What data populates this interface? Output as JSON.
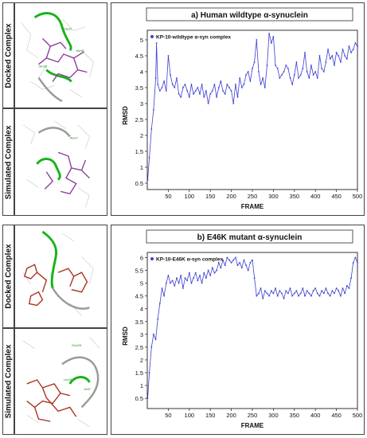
{
  "labels": {
    "docked": "Docked Complex",
    "simulated": "Simulated Complex"
  },
  "molecule_labels_top": [
    "Gly31",
    "Ala30",
    "Gln38",
    "Ala27"
  ],
  "molecule_labels_bottom": [
    "Glu126",
    "Leu31",
    "Ile37"
  ],
  "colors": {
    "line": "#3a3fd0",
    "ligand_top": "#8a3d9a",
    "ligand_bottom": "#a8321e",
    "protein_ribbon": "#17b31a",
    "ribbon_gray": "#9a9a9a"
  },
  "chart_data": [
    {
      "type": "line",
      "title": "a) Human wildtype α-synuclein",
      "xlabel": "FRAME",
      "ylabel": "RMSD",
      "xlim": [
        0,
        500
      ],
      "ylim": [
        0.3,
        5.3
      ],
      "xticks": [
        50,
        100,
        150,
        200,
        250,
        300,
        350,
        400,
        450,
        500
      ],
      "yticks": [
        0.5,
        1,
        1.5,
        2,
        2.5,
        3,
        3.5,
        4,
        4.5,
        5
      ],
      "legend": "top-left",
      "series": [
        {
          "name": "KP-10-wildtype α-syn complex",
          "x": [
            1,
            5,
            10,
            15,
            20,
            22,
            25,
            30,
            35,
            40,
            45,
            50,
            55,
            60,
            65,
            70,
            75,
            80,
            85,
            90,
            95,
            100,
            105,
            110,
            115,
            120,
            125,
            130,
            135,
            140,
            145,
            150,
            155,
            160,
            165,
            170,
            175,
            180,
            185,
            190,
            195,
            200,
            205,
            210,
            215,
            220,
            225,
            230,
            235,
            240,
            245,
            250,
            255,
            260,
            265,
            270,
            275,
            280,
            285,
            290,
            295,
            300,
            305,
            310,
            315,
            320,
            325,
            330,
            335,
            340,
            345,
            350,
            355,
            360,
            365,
            370,
            375,
            380,
            385,
            390,
            395,
            400,
            405,
            410,
            415,
            420,
            425,
            430,
            435,
            440,
            445,
            450,
            455,
            460,
            465,
            470,
            475,
            480,
            485,
            490,
            495,
            500
          ],
          "y": [
            0.6,
            1.3,
            2.2,
            2.8,
            3.8,
            4.9,
            3.6,
            3.4,
            3.5,
            3.7,
            3.4,
            4.5,
            3.9,
            3.6,
            3.5,
            3.8,
            3.3,
            3.2,
            3.5,
            3.6,
            3.4,
            3.2,
            3.6,
            3.3,
            3.4,
            3.5,
            3.3,
            3.6,
            3.2,
            3.4,
            3.0,
            3.3,
            3.4,
            3.6,
            3.2,
            3.5,
            3.7,
            3.4,
            3.3,
            3.6,
            3.5,
            3.4,
            3.0,
            3.6,
            3.2,
            3.8,
            3.5,
            3.6,
            3.9,
            4.0,
            3.7,
            4.1,
            4.3,
            5.0,
            4.0,
            3.6,
            3.8,
            3.5,
            4.2,
            5.2,
            4.9,
            5.1,
            4.2,
            4.1,
            3.8,
            3.9,
            4.0,
            4.2,
            4.1,
            3.8,
            3.6,
            3.9,
            4.3,
            3.8,
            3.9,
            4.1,
            4.6,
            4.0,
            3.8,
            4.2,
            3.9,
            4.0,
            3.8,
            4.5,
            4.1,
            4.0,
            4.3,
            4.7,
            4.4,
            4.5,
            4.2,
            4.6,
            4.5,
            4.3,
            4.7,
            4.5,
            4.4,
            4.8,
            4.6,
            4.7,
            4.9,
            4.8
          ]
        }
      ]
    },
    {
      "type": "line",
      "title": "b) E46K mutant α-synuclein",
      "xlabel": "FRAME",
      "ylabel": "RMSD",
      "xlim": [
        0,
        500
      ],
      "ylim": [
        0.1,
        6.2
      ],
      "xticks": [
        50,
        100,
        150,
        200,
        250,
        300,
        350,
        400,
        450,
        500
      ],
      "yticks": [
        0.5,
        1,
        1.5,
        2,
        2.5,
        3,
        3.5,
        4,
        4.5,
        5,
        5.5,
        6
      ],
      "legend": "top-left",
      "series": [
        {
          "name": "KP-10-E46K α-syn complex",
          "x": [
            1,
            5,
            10,
            15,
            20,
            25,
            30,
            35,
            40,
            45,
            50,
            55,
            60,
            65,
            70,
            75,
            80,
            85,
            90,
            95,
            100,
            105,
            110,
            115,
            120,
            125,
            130,
            135,
            140,
            145,
            150,
            155,
            160,
            165,
            170,
            175,
            180,
            185,
            190,
            195,
            200,
            205,
            210,
            215,
            220,
            225,
            230,
            235,
            240,
            245,
            250,
            255,
            260,
            265,
            270,
            275,
            280,
            285,
            290,
            295,
            300,
            305,
            310,
            315,
            320,
            325,
            330,
            335,
            340,
            345,
            350,
            355,
            360,
            365,
            370,
            375,
            380,
            385,
            390,
            395,
            400,
            405,
            410,
            415,
            420,
            425,
            430,
            435,
            440,
            445,
            450,
            455,
            460,
            465,
            470,
            475,
            480,
            485,
            490,
            495,
            500
          ],
          "y": [
            0.5,
            1.5,
            2.5,
            3.0,
            2.8,
            3.6,
            4.2,
            4.8,
            4.5,
            5.0,
            5.3,
            5.0,
            5.1,
            4.9,
            5.2,
            5.0,
            5.3,
            4.8,
            5.2,
            5.1,
            5.4,
            5.0,
            5.2,
            5.4,
            5.1,
            5.3,
            5.0,
            5.4,
            5.2,
            5.5,
            5.3,
            5.6,
            5.4,
            5.5,
            5.8,
            5.6,
            5.9,
            5.7,
            6.0,
            5.9,
            5.8,
            5.9,
            6.0,
            5.7,
            5.8,
            5.6,
            5.9,
            5.7,
            5.5,
            5.8,
            5.9,
            5.2,
            4.5,
            4.6,
            4.8,
            4.4,
            4.7,
            4.6,
            4.5,
            4.7,
            4.6,
            4.8,
            4.5,
            4.7,
            4.6,
            4.4,
            4.7,
            4.6,
            4.8,
            4.5,
            4.6,
            4.7,
            4.5,
            4.6,
            4.8,
            4.5,
            4.7,
            4.6,
            4.5,
            4.7,
            4.8,
            4.6,
            4.5,
            4.7,
            4.6,
            4.8,
            4.6,
            4.5,
            4.7,
            4.6,
            4.8,
            4.7,
            4.5,
            4.8,
            4.6,
            4.9,
            4.8,
            5.2,
            5.8,
            6.0,
            5.8
          ]
        }
      ]
    }
  ]
}
